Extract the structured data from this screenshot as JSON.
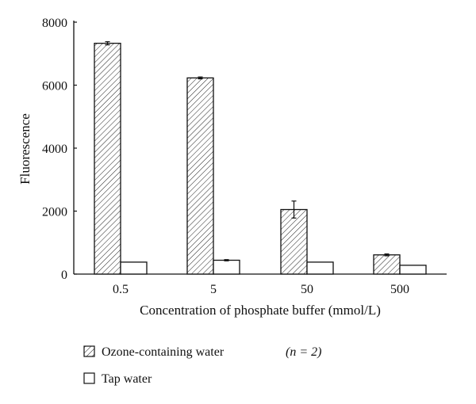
{
  "chart_data": {
    "type": "bar",
    "title": "",
    "xlabel": "Concentration of phosphate buffer (mmol/L)",
    "ylabel": "Fluorescence",
    "ylim": [
      0,
      8000
    ],
    "yticks": [
      "0",
      "2000",
      "4000",
      "6000",
      "8000"
    ],
    "categories": [
      "0.5",
      "5",
      "50",
      "500"
    ],
    "series": [
      {
        "name": "Ozone-containing water",
        "pattern": "hatched",
        "values": [
          7330,
          6230,
          2050,
          610
        ],
        "errors": [
          50,
          30,
          270,
          30
        ]
      },
      {
        "name": "Tap water",
        "pattern": "open",
        "values": [
          380,
          440,
          380,
          280
        ],
        "errors": [
          0,
          20,
          0,
          0
        ]
      }
    ],
    "legend_note": "(n = 2)",
    "legend_position": "bottom-left",
    "grid": false
  }
}
